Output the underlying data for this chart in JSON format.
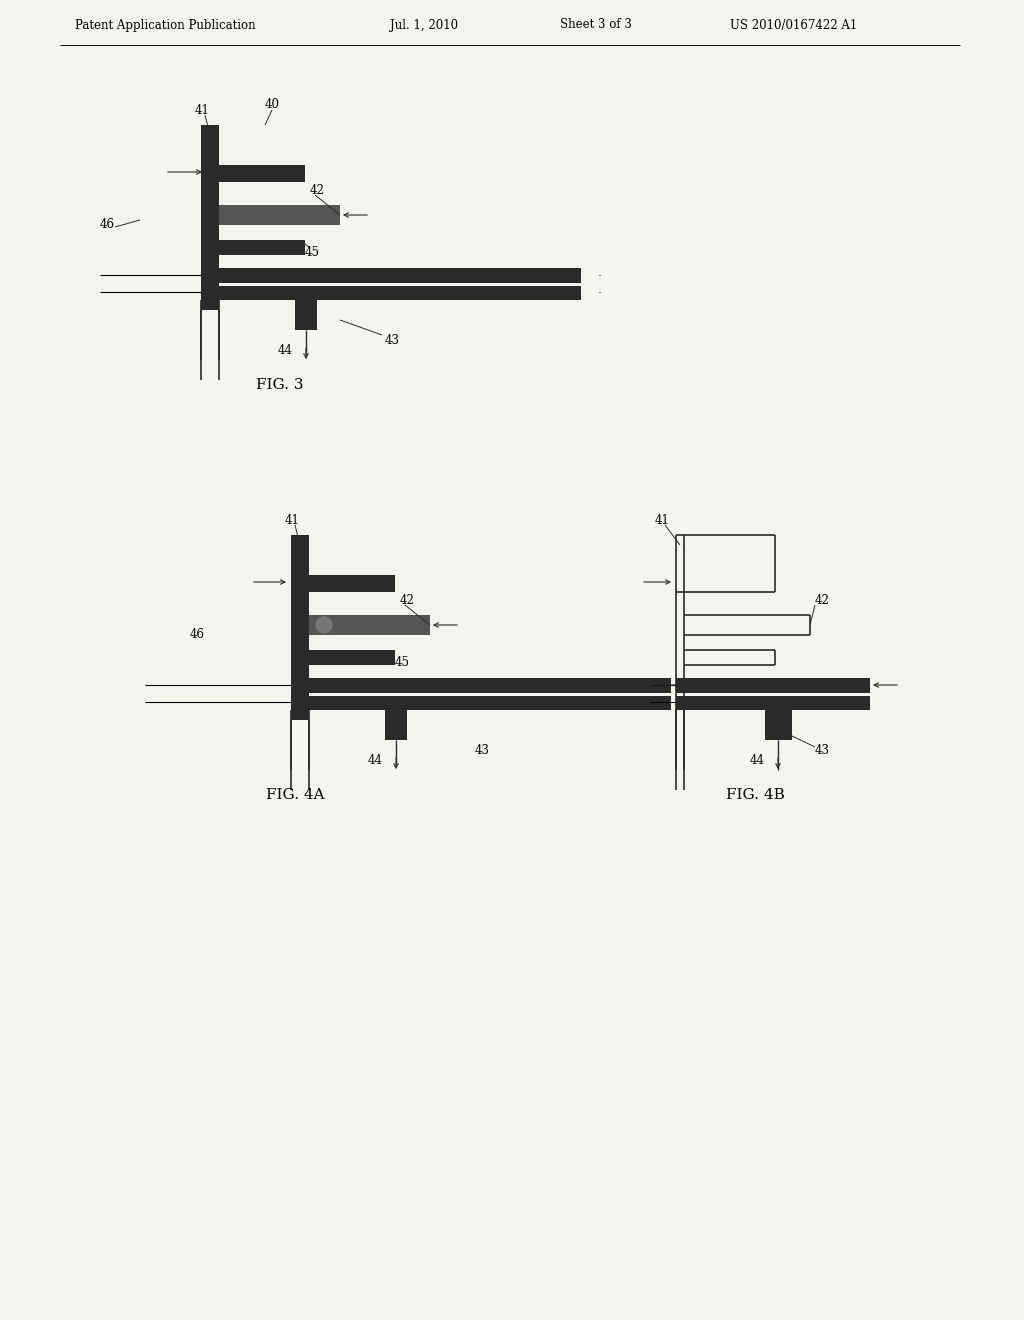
{
  "bg_color": "#f5f5f0",
  "header_text": "Patent Application Publication",
  "header_date": "Jul. 1, 2010",
  "header_sheet": "Sheet 3 of 3",
  "header_patent": "US 2010/0167422 A1",
  "fig3_title": "FIG. 3",
  "fig4a_title": "FIG. 4A",
  "fig4b_title": "FIG. 4B",
  "dark_color": "#2a2a2a",
  "medium_color": "#555555",
  "light_gray": "#999999"
}
